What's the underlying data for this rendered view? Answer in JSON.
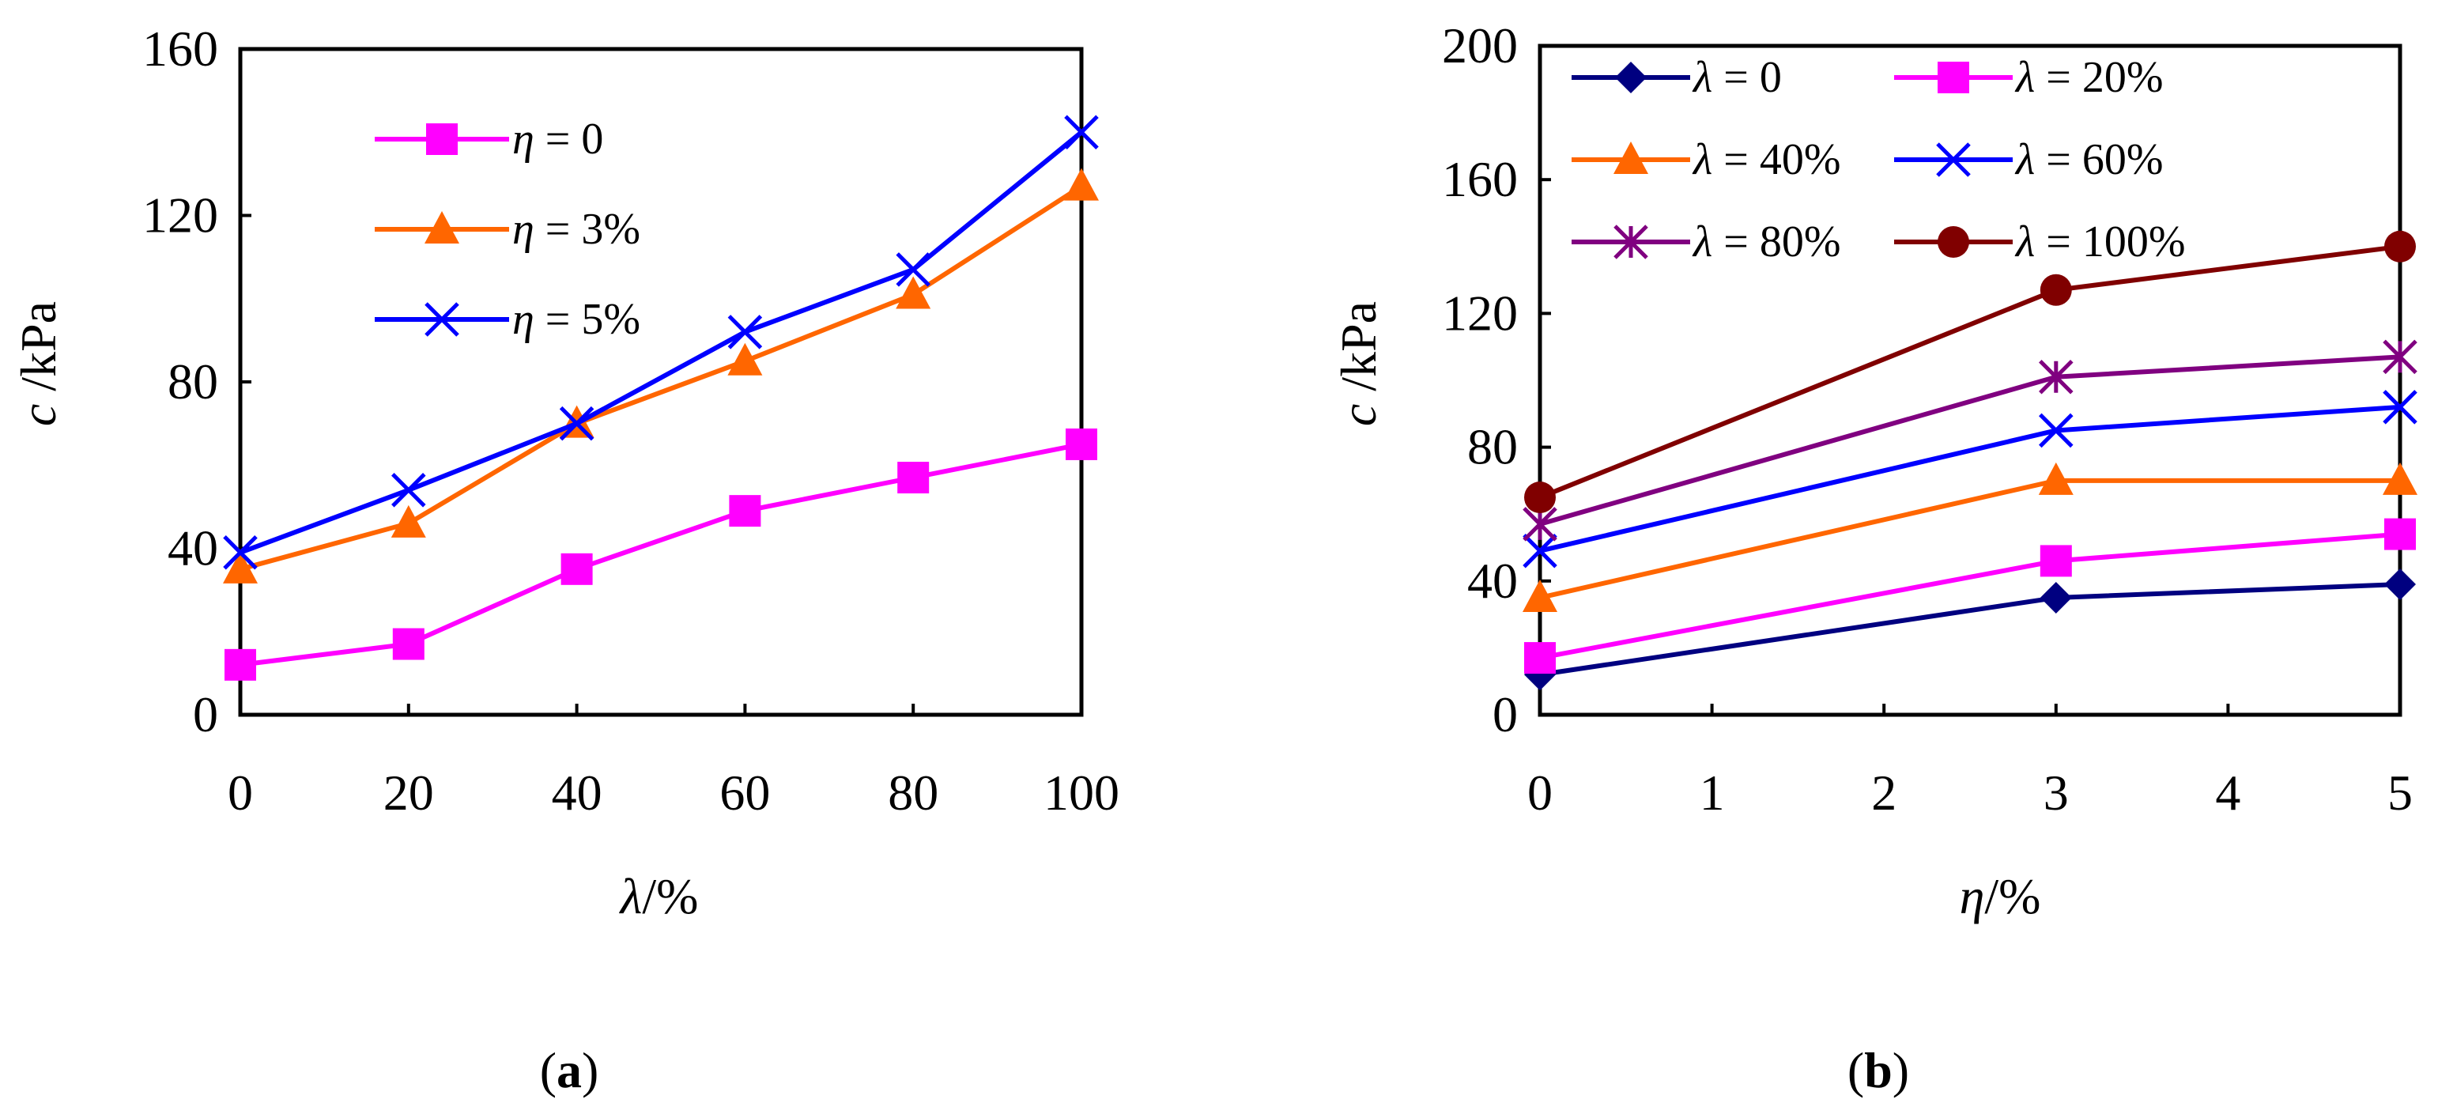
{
  "chart_data": [
    {
      "type": "line",
      "panel_label": "a",
      "xlabel": "λ/%",
      "ylabel": "c /kPa",
      "x": [
        0,
        20,
        40,
        60,
        80,
        100
      ],
      "xlim": [
        0,
        100
      ],
      "ylim": [
        0,
        160
      ],
      "xticks": [
        0,
        20,
        40,
        60,
        80,
        100
      ],
      "yticks": [
        0,
        40,
        80,
        120,
        160
      ],
      "legend_position": "top-left",
      "series": [
        {
          "name": "η = 0",
          "symbol": "η",
          "label_suffix": " = 0",
          "color": "#ff00ff",
          "marker": "square",
          "values": [
            12,
            17,
            35,
            49,
            57,
            65
          ]
        },
        {
          "name": "η = 3%",
          "symbol": "η",
          "label_suffix": " = 3%",
          "color": "#ff6600",
          "marker": "triangle",
          "values": [
            35,
            46,
            70,
            85,
            101,
            127
          ]
        },
        {
          "name": "η = 5%",
          "symbol": "η",
          "label_suffix": " = 5%",
          "color": "#0000ff",
          "marker": "x",
          "values": [
            39,
            54,
            70,
            92,
            107,
            140
          ]
        }
      ]
    },
    {
      "type": "line",
      "panel_label": "b",
      "xlabel": "η/%",
      "ylabel": "c /kPa",
      "x": [
        0,
        3,
        5
      ],
      "xlim": [
        0,
        5
      ],
      "ylim": [
        0,
        200
      ],
      "xticks": [
        0,
        1,
        2,
        3,
        4,
        5
      ],
      "yticks": [
        0,
        40,
        80,
        120,
        160,
        200
      ],
      "legend_position": "top",
      "series": [
        {
          "name": "λ = 0",
          "symbol": "λ",
          "label_suffix": " = 0",
          "color": "#000080",
          "marker": "diamond",
          "values": [
            12,
            35,
            39
          ]
        },
        {
          "name": "λ = 20%",
          "symbol": "λ",
          "label_suffix": " = 20%",
          "color": "#ff00ff",
          "marker": "square",
          "values": [
            17,
            46,
            54
          ]
        },
        {
          "name": "λ = 40%",
          "symbol": "λ",
          "label_suffix": " = 40%",
          "color": "#ff6600",
          "marker": "triangle",
          "values": [
            35,
            70,
            70
          ]
        },
        {
          "name": "λ = 60%",
          "symbol": "λ",
          "label_suffix": " = 60%",
          "color": "#0000ff",
          "marker": "x",
          "values": [
            49,
            85,
            92
          ]
        },
        {
          "name": "λ = 80%",
          "symbol": "λ",
          "label_suffix": " = 80%",
          "color": "#800080",
          "marker": "asterisk",
          "values": [
            57,
            101,
            107
          ]
        },
        {
          "name": "λ = 100%",
          "symbol": "λ",
          "label_suffix": " = 100%",
          "color": "#800000",
          "marker": "circle",
          "values": [
            65,
            127,
            140
          ]
        }
      ]
    }
  ]
}
